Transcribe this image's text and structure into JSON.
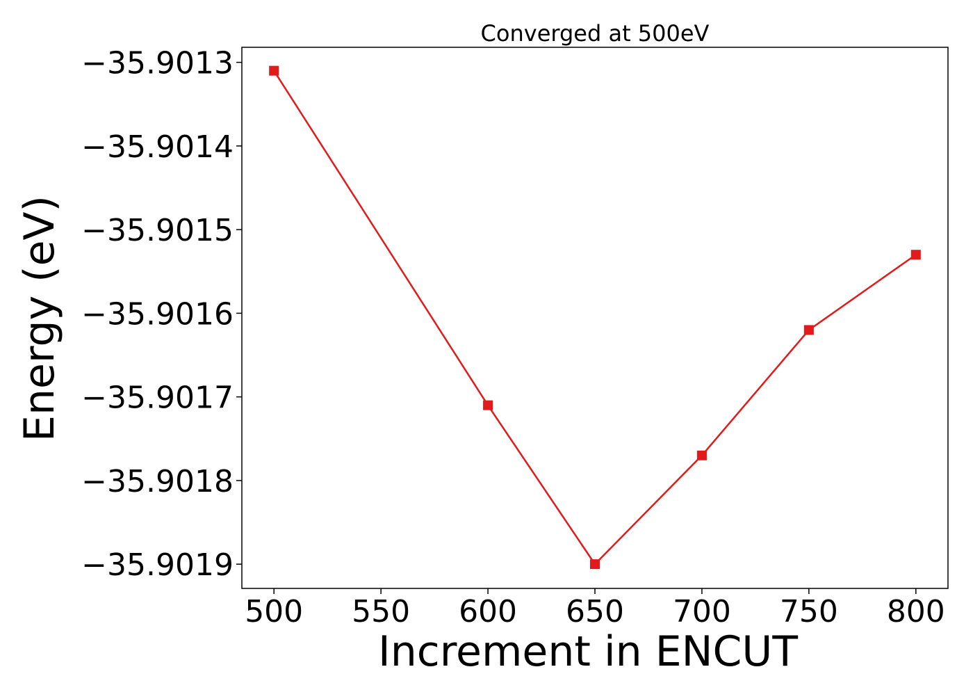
{
  "chart_data": {
    "type": "line",
    "title": "Converged at 500eV",
    "xlabel": "Increment in ENCUT",
    "ylabel": "Energy (eV)",
    "x": [
      500,
      600,
      650,
      700,
      750,
      800
    ],
    "series": [
      {
        "values": [
          -35.90131,
          -35.90171,
          -35.9019,
          -35.90177,
          -35.90162,
          -35.90153
        ],
        "color": "#e31a1c",
        "marker": "square"
      }
    ],
    "xlim": [
      485,
      815
    ],
    "ylim": [
      -35.901929,
      -35.901282
    ],
    "x_ticks": [
      500,
      550,
      600,
      650,
      700,
      750,
      800
    ],
    "x_tick_labels": [
      "500",
      "550",
      "600",
      "650",
      "700",
      "750",
      "800"
    ],
    "y_ticks": [
      -35.9013,
      -35.9014,
      -35.9015,
      -35.9016,
      -35.9017,
      -35.9018,
      -35.9019
    ],
    "y_tick_labels": [
      "−35.9013",
      "−35.9014",
      "−35.9015",
      "−35.9016",
      "−35.9017",
      "−35.9018",
      "−35.9019"
    ],
    "grid": false,
    "legend": false
  }
}
